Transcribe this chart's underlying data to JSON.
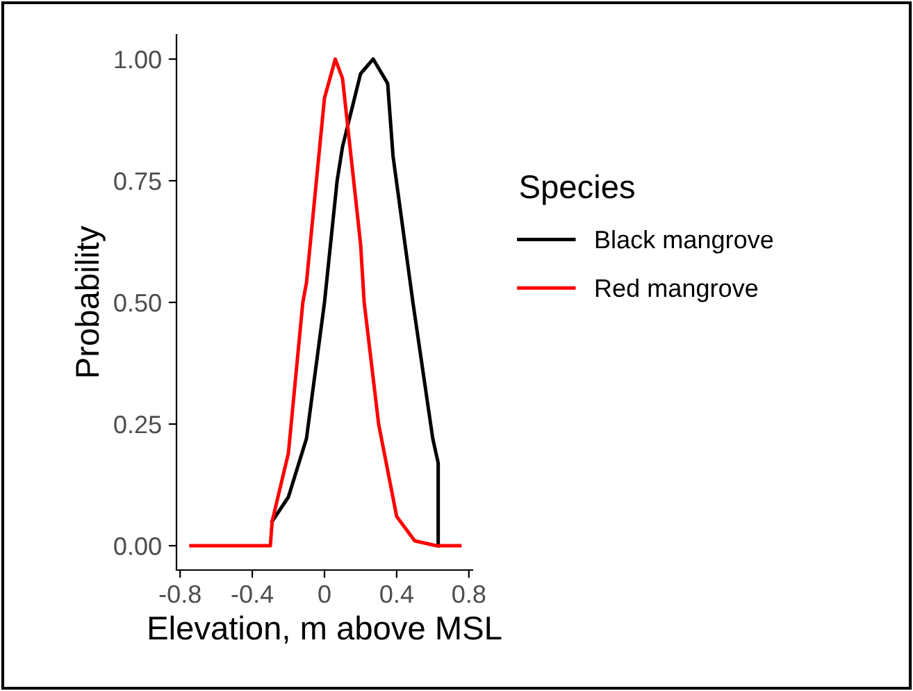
{
  "chart_data": {
    "type": "line",
    "xlabel": "Elevation, m above MSL",
    "ylabel": "Probability",
    "legend_title": "Species",
    "legend": "right",
    "grid": false,
    "xlim": [
      -0.82,
      0.82
    ],
    "ylim": [
      -0.05,
      1.05
    ],
    "xticks": [
      -0.8,
      -0.4,
      0,
      0.4,
      0.8
    ],
    "yticks": [
      {
        "value": 0,
        "label": "0.00"
      },
      {
        "value": 0.25,
        "label": "0.25"
      },
      {
        "value": 0.5,
        "label": "0.50"
      },
      {
        "value": 0.75,
        "label": "0.75"
      },
      {
        "value": 1,
        "label": "1.00"
      }
    ],
    "series": [
      {
        "name": "Black mangrove",
        "color": "#000000",
        "x": [
          -0.29,
          -0.2,
          -0.1,
          0,
          0.07,
          0.1,
          0.2,
          0.27,
          0.35,
          0.38,
          0.49,
          0.6,
          0.63,
          0.63
        ],
        "values": [
          0.05,
          0.1,
          0.22,
          0.5,
          0.75,
          0.82,
          0.97,
          1,
          0.95,
          0.8,
          0.5,
          0.22,
          0.17,
          0
        ]
      },
      {
        "name": "Red mangrove",
        "color": "#ff0000",
        "x": [
          -0.74,
          -0.3,
          -0.29,
          -0.2,
          -0.12,
          -0.1,
          0,
          0.06,
          0.1,
          0.2,
          0.22,
          0.3,
          0.4,
          0.5,
          0.62,
          0.75
        ],
        "values": [
          0,
          0,
          0.05,
          0.19,
          0.5,
          0.54,
          0.92,
          1,
          0.96,
          0.62,
          0.5,
          0.25,
          0.06,
          0.01,
          0,
          0
        ]
      }
    ]
  }
}
